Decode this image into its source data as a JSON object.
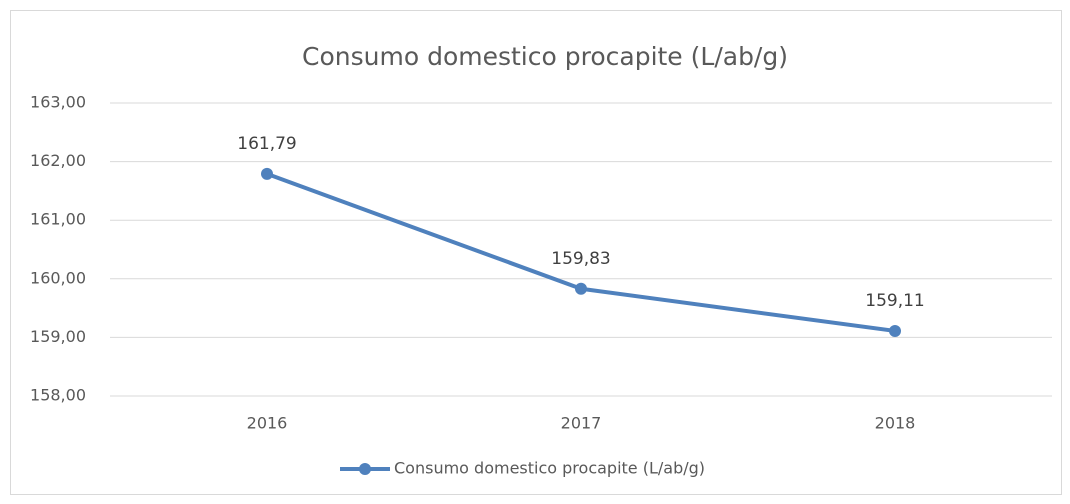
{
  "chart_data": {
    "type": "line",
    "title": "Consumo domestico procapite (L/ab/g)",
    "categories": [
      "2016",
      "2017",
      "2018"
    ],
    "series": [
      {
        "name": "Consumo domestico procapite (L/ab/g)",
        "color": "#4f81bd",
        "values": [
          161.79,
          159.83,
          159.11
        ],
        "value_labels": [
          "161,79",
          "159,83",
          "159,11"
        ]
      }
    ],
    "ylim": [
      158,
      163
    ],
    "yticks": [
      {
        "value": 158,
        "label": "158,00"
      },
      {
        "value": 159,
        "label": "159,00"
      },
      {
        "value": 160,
        "label": "160,00"
      },
      {
        "value": 161,
        "label": "161,00"
      },
      {
        "value": 162,
        "label": "162,00"
      },
      {
        "value": 163,
        "label": "163,00"
      }
    ],
    "grid": true,
    "legend": "bottom"
  }
}
